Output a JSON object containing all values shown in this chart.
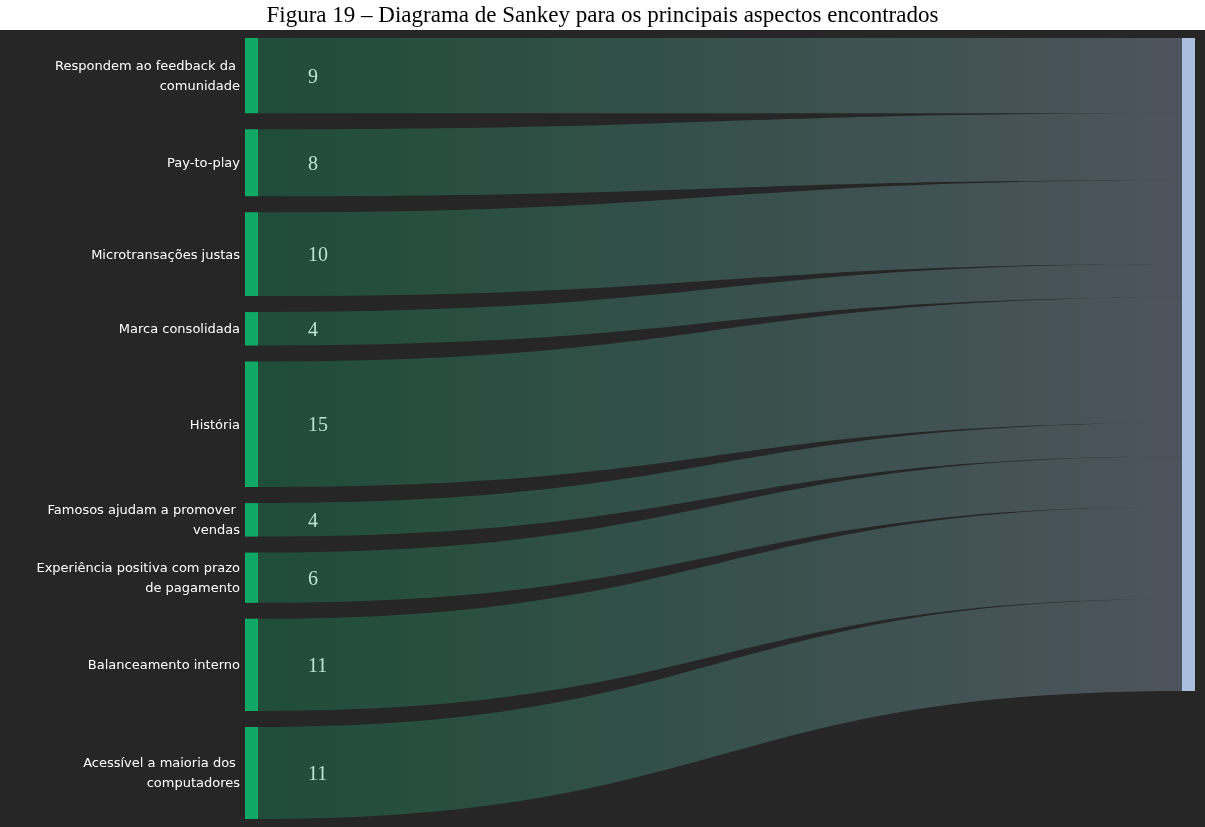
{
  "chart_data": {
    "type": "other",
    "title": "Figura 19 – Diagrama de Sankey para os principais aspectos encontrados",
    "categories": [
      "Respondem ao feedback da comunidade",
      "Pay-to-play",
      "Microtransações justas",
      "Marca consolidada",
      "História",
      "Famosos ajudam a promover vendas",
      "Experiência positiva com prazo de pagamento",
      "Balanceamento interno",
      "Acessível a maioria dos computadores",
      null
    ],
    "values": [
      9,
      8,
      10,
      4,
      15,
      4,
      6,
      11,
      11,
      null
    ],
    "colors": [
      "#0fa864",
      "#0fa864",
      "#0fa864",
      "#0fa864",
      "#0fa864",
      "#0fa864",
      "#0fa864",
      "#0fa864",
      "#0fa864",
      "#a9bfdd"
    ],
    "data_labels": true
  }
}
